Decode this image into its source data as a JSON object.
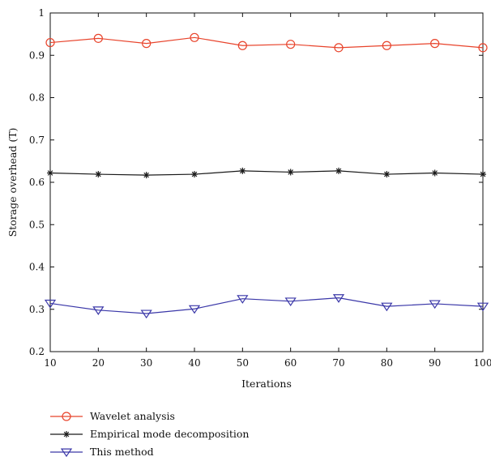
{
  "chart_data": {
    "type": "line",
    "xlabel": "Iterations",
    "ylabel": "Storage overhead (T)",
    "xlim": [
      10,
      100
    ],
    "ylim": [
      0.2,
      1
    ],
    "x_ticks": [
      10,
      20,
      30,
      40,
      50,
      60,
      70,
      80,
      90,
      100
    ],
    "y_ticks": [
      0.2,
      0.3,
      0.4,
      0.5,
      0.6,
      0.7,
      0.8,
      0.9,
      1
    ],
    "y_tick_labels": [
      "0.2",
      "0.3",
      "0.4",
      "0.5",
      "0.6",
      "0.7",
      "0.8",
      "0.9",
      "1"
    ],
    "x": [
      10,
      20,
      30,
      40,
      50,
      60,
      70,
      80,
      90,
      100
    ],
    "grid": false,
    "legend_position": "below",
    "series": [
      {
        "name": "Wavelet analysis",
        "color": "#e8432b",
        "marker": "circle",
        "values": [
          0.93,
          0.94,
          0.928,
          0.942,
          0.923,
          0.926,
          0.918,
          0.923,
          0.928,
          0.918
        ]
      },
      {
        "name": "Empirical mode decomposition",
        "color": "#1a1a1a",
        "marker": "asterisk",
        "values": [
          0.622,
          0.619,
          0.617,
          0.619,
          0.627,
          0.624,
          0.627,
          0.619,
          0.622,
          0.619
        ]
      },
      {
        "name": "This method",
        "color": "#3a37a8",
        "marker": "triangle-down",
        "values": [
          0.314,
          0.298,
          0.29,
          0.301,
          0.325,
          0.319,
          0.327,
          0.307,
          0.313,
          0.307
        ]
      }
    ]
  }
}
